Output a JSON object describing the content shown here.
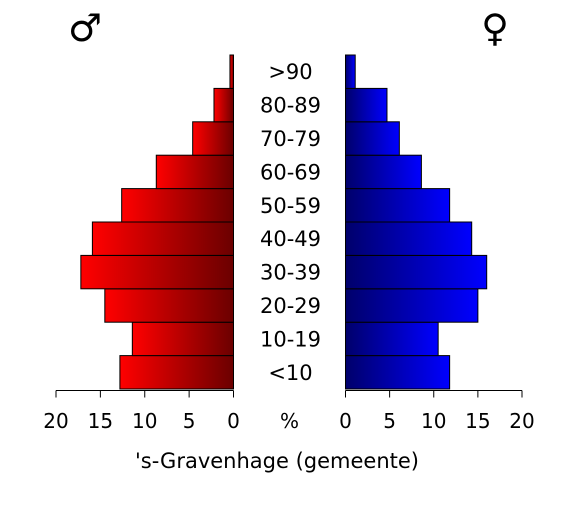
{
  "chart_data": {
    "type": "bar",
    "orientation": "horizontal",
    "layout": "population-pyramid",
    "categories": [
      "<10",
      "10-19",
      "20-29",
      "30-39",
      "40-49",
      "50-59",
      "60-69",
      "70-79",
      "80-89",
      ">90"
    ],
    "series": [
      {
        "name": "♂",
        "side": "left",
        "color_dark": "#6b0000",
        "color_light": "#ff0000",
        "values": [
          12.8,
          11.4,
          14.5,
          17.2,
          15.9,
          12.6,
          8.7,
          4.6,
          2.2,
          0.4
        ]
      },
      {
        "name": "♀",
        "side": "right",
        "color_dark": "#00006b",
        "color_light": "#0000ff",
        "values": [
          11.8,
          10.5,
          15.0,
          16.0,
          14.3,
          11.8,
          8.6,
          6.1,
          4.7,
          1.1
        ]
      }
    ],
    "xlim": [
      0,
      20
    ],
    "xticks": [
      0,
      5,
      10,
      15,
      20
    ],
    "left_tick_labels": [
      "20",
      "15",
      "10",
      "5",
      "0"
    ],
    "right_tick_labels": [
      "0",
      "5",
      "10",
      "15",
      "20"
    ],
    "unit_label": "%",
    "caption": "'s-Gravenhage (gemeente)",
    "grid": false,
    "legend": "none"
  }
}
